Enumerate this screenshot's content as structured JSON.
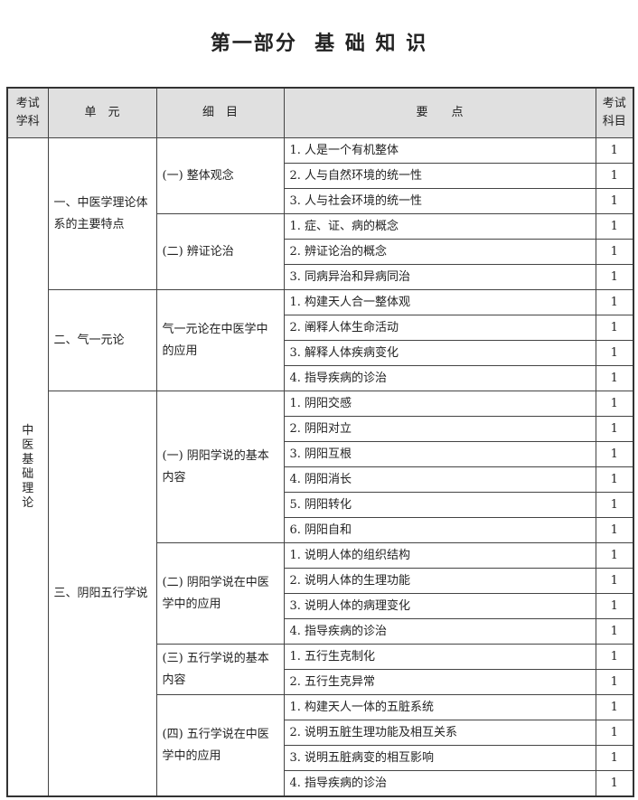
{
  "title": "第一部分  基 础 知 识",
  "headers": {
    "subject": "考试学科",
    "unit": "单　元",
    "detail": "细　目",
    "points": "要　　点",
    "score": "考试科目"
  },
  "subject": "中医基础理论",
  "units": [
    {
      "name": "一、中医学理论体系的主要特点",
      "details": [
        {
          "name": "(一) 整体观念",
          "points": [
            {
              "text": "1. 人是一个有机整体",
              "score": "1"
            },
            {
              "text": "2. 人与自然环境的统一性",
              "score": "1"
            },
            {
              "text": "3. 人与社会环境的统一性",
              "score": "1"
            }
          ]
        },
        {
          "name": "(二) 辨证论治",
          "points": [
            {
              "text": "1. 症、证、病的概念",
              "score": "1"
            },
            {
              "text": "2. 辨证论治的概念",
              "score": "1"
            },
            {
              "text": "3. 同病异治和异病同治",
              "score": "1"
            }
          ]
        }
      ]
    },
    {
      "name": "二、气一元论",
      "details": [
        {
          "name": "气一元论在中医学中的应用",
          "points": [
            {
              "text": "1. 构建天人合一整体观",
              "score": "1"
            },
            {
              "text": "2. 阐释人体生命活动",
              "score": "1"
            },
            {
              "text": "3. 解释人体疾病变化",
              "score": "1"
            },
            {
              "text": "4. 指导疾病的诊治",
              "score": "1"
            }
          ]
        }
      ]
    },
    {
      "name": "三、阴阳五行学说",
      "details": [
        {
          "name": "(一) 阴阳学说的基本内容",
          "points": [
            {
              "text": "1. 阴阳交感",
              "score": "1"
            },
            {
              "text": "2. 阴阳对立",
              "score": "1"
            },
            {
              "text": "3. 阴阳互根",
              "score": "1"
            },
            {
              "text": "4. 阴阳消长",
              "score": "1"
            },
            {
              "text": "5. 阴阳转化",
              "score": "1"
            },
            {
              "text": "6. 阴阳自和",
              "score": "1"
            }
          ]
        },
        {
          "name": "(二) 阴阳学说在中医学中的应用",
          "points": [
            {
              "text": "1. 说明人体的组织结构",
              "score": "1"
            },
            {
              "text": "2. 说明人体的生理功能",
              "score": "1"
            },
            {
              "text": "3. 说明人体的病理变化",
              "score": "1"
            },
            {
              "text": "4. 指导疾病的诊治",
              "score": "1"
            }
          ]
        },
        {
          "name": "(三) 五行学说的基本内容",
          "points": [
            {
              "text": "1. 五行生克制化",
              "score": "1"
            },
            {
              "text": "2. 五行生克异常",
              "score": "1"
            }
          ]
        },
        {
          "name": "(四) 五行学说在中医学中的应用",
          "points": [
            {
              "text": "1. 构建天人一体的五脏系统",
              "score": "1"
            },
            {
              "text": "2. 说明五脏生理功能及相互关系",
              "score": "1"
            },
            {
              "text": "3. 说明五脏病变的相互影响",
              "score": "1"
            },
            {
              "text": "4. 指导疾病的诊治",
              "score": "1"
            }
          ]
        }
      ]
    }
  ]
}
